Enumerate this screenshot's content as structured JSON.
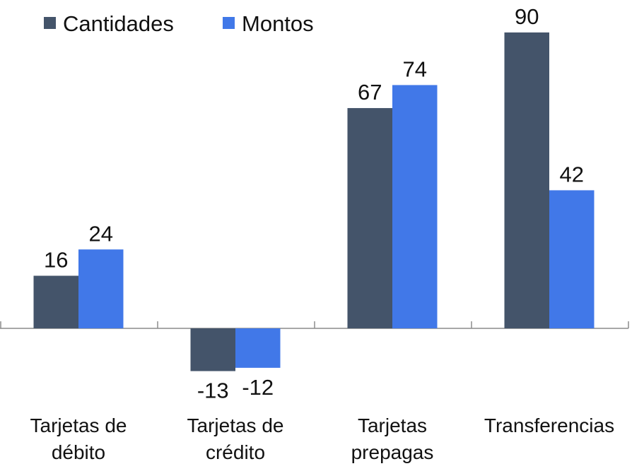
{
  "chart_data": {
    "type": "bar",
    "categories": [
      [
        "Tarjetas de",
        "débito"
      ],
      [
        "Tarjetas de",
        "crédito"
      ],
      [
        "Tarjetas",
        "prepagas"
      ],
      [
        "Transferencias"
      ]
    ],
    "series": [
      {
        "name": "Cantidades",
        "values": [
          16,
          -13,
          67,
          90
        ],
        "color": "#44546a"
      },
      {
        "name": "Montos",
        "values": [
          24,
          -12,
          74,
          42
        ],
        "color": "#4178e8"
      }
    ],
    "data_labels": true,
    "legend_position": "top-left",
    "grid": false,
    "y_axis_visible": false,
    "axis_color": "#8c8c8c"
  }
}
